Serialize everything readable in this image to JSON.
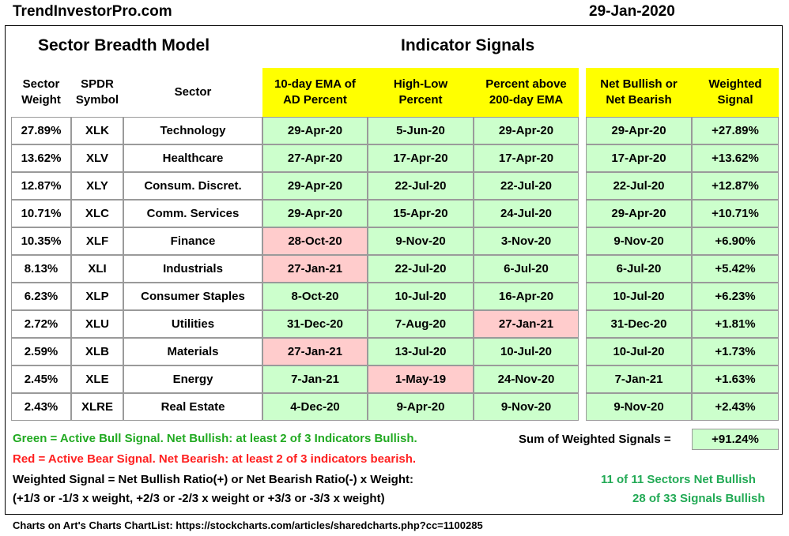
{
  "header": {
    "site": "TrendInvestorPro.com",
    "date": "29-Jan-2020"
  },
  "titles": {
    "left": "Sector Breadth Model",
    "right": "Indicator Signals"
  },
  "columns": {
    "weight": [
      "Sector",
      "Weight"
    ],
    "symbol": [
      "SPDR",
      "Symbol"
    ],
    "sector": "Sector",
    "ema": [
      "10-day EMA of",
      "AD Percent"
    ],
    "hl": [
      "High-Low",
      "Percent"
    ],
    "pct": [
      "Percent above",
      "200-day EMA"
    ],
    "net": [
      "Net Bullish or",
      "Net Bearish"
    ],
    "ws": [
      "Weighted",
      "Signal"
    ]
  },
  "rows": [
    {
      "weight": "27.89%",
      "symbol": "XLK",
      "sector": "Technology",
      "ema": "29-Apr-20",
      "hl": "5-Jun-20",
      "pct": "29-Apr-20",
      "net": "29-Apr-20",
      "ws": "+27.89%",
      "ema_c": "green",
      "hl_c": "green",
      "pct_c": "green"
    },
    {
      "weight": "13.62%",
      "symbol": "XLV",
      "sector": "Healthcare",
      "ema": "27-Apr-20",
      "hl": "17-Apr-20",
      "pct": "17-Apr-20",
      "net": "17-Apr-20",
      "ws": "+13.62%",
      "ema_c": "green",
      "hl_c": "green",
      "pct_c": "green"
    },
    {
      "weight": "12.87%",
      "symbol": "XLY",
      "sector": "Consum. Discret.",
      "ema": "29-Apr-20",
      "hl": "22-Jul-20",
      "pct": "22-Jul-20",
      "net": "22-Jul-20",
      "ws": "+12.87%",
      "ema_c": "green",
      "hl_c": "green",
      "pct_c": "green"
    },
    {
      "weight": "10.71%",
      "symbol": "XLC",
      "sector": "Comm. Services",
      "ema": "29-Apr-20",
      "hl": "15-Apr-20",
      "pct": "24-Jul-20",
      "net": "29-Apr-20",
      "ws": "+10.71%",
      "ema_c": "green",
      "hl_c": "green",
      "pct_c": "green"
    },
    {
      "weight": "10.35%",
      "symbol": "XLF",
      "sector": "Finance",
      "ema": "28-Oct-20",
      "hl": "9-Nov-20",
      "pct": "3-Nov-20",
      "net": "9-Nov-20",
      "ws": "+6.90%",
      "ema_c": "red",
      "hl_c": "green",
      "pct_c": "green"
    },
    {
      "weight": "8.13%",
      "symbol": "XLI",
      "sector": "Industrials",
      "ema": "27-Jan-21",
      "hl": "22-Jul-20",
      "pct": "6-Jul-20",
      "net": "6-Jul-20",
      "ws": "+5.42%",
      "ema_c": "red",
      "hl_c": "green",
      "pct_c": "green"
    },
    {
      "weight": "6.23%",
      "symbol": "XLP",
      "sector": "Consumer Staples",
      "ema": "8-Oct-20",
      "hl": "10-Jul-20",
      "pct": "16-Apr-20",
      "net": "10-Jul-20",
      "ws": "+6.23%",
      "ema_c": "green",
      "hl_c": "green",
      "pct_c": "green"
    },
    {
      "weight": "2.72%",
      "symbol": "XLU",
      "sector": "Utilities",
      "ema": "31-Dec-20",
      "hl": "7-Aug-20",
      "pct": "27-Jan-21",
      "net": "31-Dec-20",
      "ws": "+1.81%",
      "ema_c": "green",
      "hl_c": "green",
      "pct_c": "red"
    },
    {
      "weight": "2.59%",
      "symbol": "XLB",
      "sector": "Materials",
      "ema": "27-Jan-21",
      "hl": "13-Jul-20",
      "pct": "10-Jul-20",
      "net": "10-Jul-20",
      "ws": "+1.73%",
      "ema_c": "red",
      "hl_c": "green",
      "pct_c": "green"
    },
    {
      "weight": "2.45%",
      "symbol": "XLE",
      "sector": "Energy",
      "ema": "7-Jan-21",
      "hl": "1-May-19",
      "pct": "24-Nov-20",
      "net": "7-Jan-21",
      "ws": "+1.63%",
      "ema_c": "green",
      "hl_c": "red",
      "pct_c": "green"
    },
    {
      "weight": "2.43%",
      "symbol": "XLRE",
      "sector": "Real Estate",
      "ema": "4-Dec-20",
      "hl": "9-Apr-20",
      "pct": "9-Nov-20",
      "net": "9-Nov-20",
      "ws": "+2.43%",
      "ema_c": "green",
      "hl_c": "green",
      "pct_c": "green"
    }
  ],
  "legend": {
    "green": "Green = Active Bull Signal. Net Bullish: at least 2 of 3 Indicators Bullish.",
    "red": "Red = Active Bear Signal. Net Bearish: at least 2 of 3 indicators bearish.",
    "formula1": "Weighted Signal = Net Bullish Ratio(+) or Net Bearish Ratio(-) x Weight:",
    "formula2": "(+1/3 or -1/3 x weight, +2/3 or -2/3 x weight or +3/3 or -3/3 x weight)"
  },
  "summary": {
    "sum_label": "Sum of Weighted Signals =",
    "sum_value": "+91.24%",
    "sectors": "11 of 11 Sectors Net Bullish",
    "signals": "28 of 33 Signals Bullish"
  },
  "footer": "Charts on Art's Charts ChartList: https://stockcharts.com/articles/sharedcharts.php?cc=1100285",
  "colors": {
    "bull_cell": "#ccffcc",
    "bear_cell": "#ffcccc",
    "header_yellow": "#ffff00",
    "bull_text": "#22aa22",
    "bear_text": "#ff2020",
    "summary_text": "#22aa55"
  }
}
